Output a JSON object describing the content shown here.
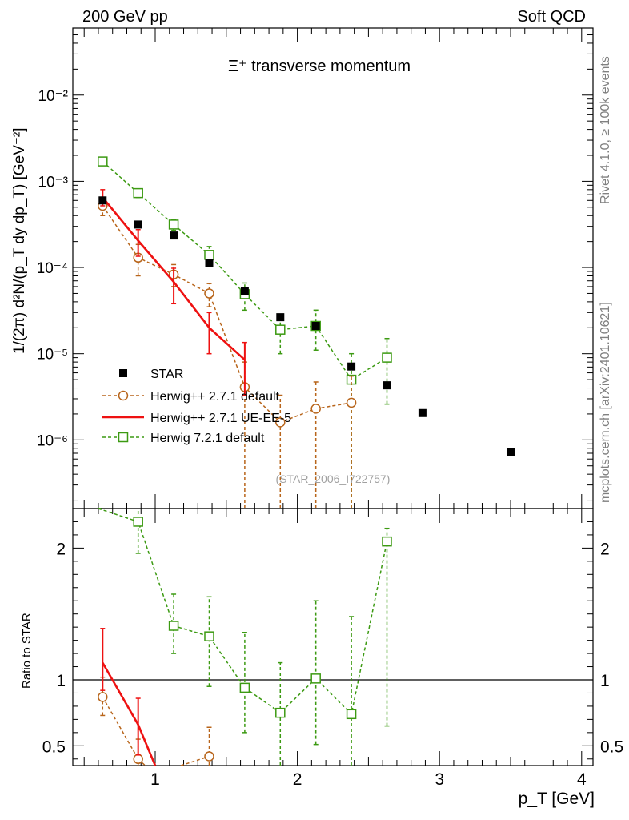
{
  "header": {
    "left": "200 GeV pp",
    "right": "Soft QCD"
  },
  "side_labels": {
    "rivet": "Rivet 4.1.0, ≥ 100k events",
    "mcplots": "mcplots.cern.ch [arXiv:2401.10621]"
  },
  "watermark": "(STAR_2006_I722757)",
  "chart_data": [
    {
      "type": "scatter",
      "panel": "main",
      "title": "Ξ⁺ transverse momentum",
      "xlabel": "p_T [GeV]",
      "ylabel": "1/(2π)  d²N/(p_T dy dp_T) [GeV⁻²]",
      "yscale": "log",
      "xlim": [
        0.42,
        4.08
      ],
      "ylim": [
        1.6e-07,
        0.06
      ],
      "y_ticks": [
        {
          "value": 1e-06,
          "label": "10⁻⁶"
        },
        {
          "value": 1e-05,
          "label": "10⁻⁵"
        },
        {
          "value": 0.0001,
          "label": "10⁻⁴"
        },
        {
          "value": 0.001,
          "label": "10⁻³"
        },
        {
          "value": 0.01,
          "label": "10⁻²"
        }
      ],
      "series": [
        {
          "name": "STAR",
          "style": "filled-square",
          "color": "#000000",
          "x": [
            0.63,
            0.88,
            1.13,
            1.38,
            1.63,
            1.88,
            2.13,
            2.38,
            2.63,
            2.88,
            3.5
          ],
          "y": [
            0.0006,
            0.000315,
            0.000235,
            0.000112,
            5.3e-05,
            2.65e-05,
            2.1e-05,
            7.1e-06,
            4.3e-06,
            2.05e-06,
            7.3e-07
          ]
        },
        {
          "name": "Herwig++ 2.7.1 default",
          "style": "open-circle-dashed",
          "color": "#b8651b",
          "x": [
            0.63,
            0.88,
            1.13,
            1.38,
            1.63,
            1.88,
            2.13,
            2.38
          ],
          "y": [
            0.00052,
            0.00013,
            8.3e-05,
            5e-05,
            4.1e-06,
            1.6e-06,
            2.3e-06,
            2.7e-06
          ],
          "err_lo": [
            0.0004,
            8e-05,
            6e-05,
            3.5e-05,
            1e-08,
            1e-08,
            1e-08,
            1e-08
          ],
          "err_hi": [
            0.00065,
            0.000185,
            0.000108,
            6.5e-05,
            8e-06,
            3.3e-06,
            4.7e-06,
            5.5e-06
          ]
        },
        {
          "name": "Herwig++ 2.7.1 UE-EE-5",
          "style": "solid-line",
          "color": "#ee1111",
          "x": [
            0.63,
            0.88,
            1.13,
            1.38,
            1.63
          ],
          "y": [
            0.00065,
            0.000205,
            6.8e-05,
            2e-05,
            8.5e-06
          ],
          "err_lo": [
            0.00052,
            0.000135,
            3.8e-05,
            1e-05,
            3.3e-06
          ],
          "err_hi": [
            0.0008,
            0.000275,
            9.8e-05,
            3e-05,
            1.35e-05
          ]
        },
        {
          "name": "Herwig 7.2.1 default",
          "style": "open-square-dashed",
          "color": "#3c9a12",
          "x": [
            0.63,
            0.88,
            1.13,
            1.38,
            1.63,
            1.88,
            2.13,
            2.38,
            2.63
          ],
          "y": [
            0.0017,
            0.00073,
            0.000315,
            0.00014,
            4.9e-05,
            1.9e-05,
            2.1e-05,
            5e-06,
            9e-06
          ],
          "err_lo": [
            0.00155,
            0.00065,
            0.00027,
            0.000105,
            3.2e-05,
            1e-05,
            1.1e-05,
            1e-08,
            2.6e-06
          ],
          "err_hi": [
            0.00185,
            0.00081,
            0.00036,
            0.000175,
            6.6e-05,
            2.8e-05,
            3.2e-05,
            1e-05,
            1.5e-05
          ]
        }
      ]
    },
    {
      "type": "scatter",
      "panel": "ratio",
      "ylabel": "Ratio to STAR",
      "xlabel": "p_T [GeV]",
      "xlim": [
        0.42,
        4.08
      ],
      "ylim": [
        0.35,
        2.3
      ],
      "x_ticks": [
        1,
        2,
        3,
        4
      ],
      "y_ticks": [
        0.5,
        1,
        2
      ],
      "reference_line": 1,
      "series": [
        {
          "name": "Herwig++ 2.7.1 default",
          "style": "open-circle-dashed",
          "color": "#b8651b",
          "x": [
            0.63,
            0.88,
            1.38
          ],
          "y": [
            0.87,
            0.4,
            0.42
          ],
          "err_lo": [
            0.73,
            0.25,
            0.2
          ],
          "err_hi": [
            1.02,
            0.55,
            0.64
          ],
          "tail_to": [
            [
              0.88,
              0.4,
              0.93,
              0.2
            ],
            [
              1.18,
              0.2,
              1.38,
              0.42
            ]
          ]
        },
        {
          "name": "Herwig++ 2.7.1 UE-EE-5",
          "style": "solid-line",
          "color": "#ee1111",
          "x": [
            0.63,
            0.88,
            1.0
          ],
          "y": [
            1.13,
            0.66,
            0.35
          ],
          "err_lo": [
            0.92,
            0.43,
            null
          ],
          "err_hi": [
            1.39,
            0.86,
            null
          ]
        },
        {
          "name": "Herwig 7.2.1 default",
          "style": "open-square-dashed",
          "color": "#3c9a12",
          "x": [
            0.88,
            1.13,
            1.38,
            1.63,
            1.88,
            2.13,
            2.38,
            2.63
          ],
          "y": [
            2.2,
            1.41,
            1.33,
            0.94,
            0.75,
            1.01,
            0.74,
            2.05
          ],
          "err_lo": [
            1.96,
            1.2,
            0.95,
            0.6,
            0.2,
            0.51,
            0.15,
            0.65
          ],
          "err_hi": [
            2.6,
            1.65,
            1.63,
            1.36,
            1.13,
            1.6,
            1.48,
            2.15
          ],
          "lead_in": [
            0.6,
            2.6
          ]
        }
      ]
    }
  ]
}
